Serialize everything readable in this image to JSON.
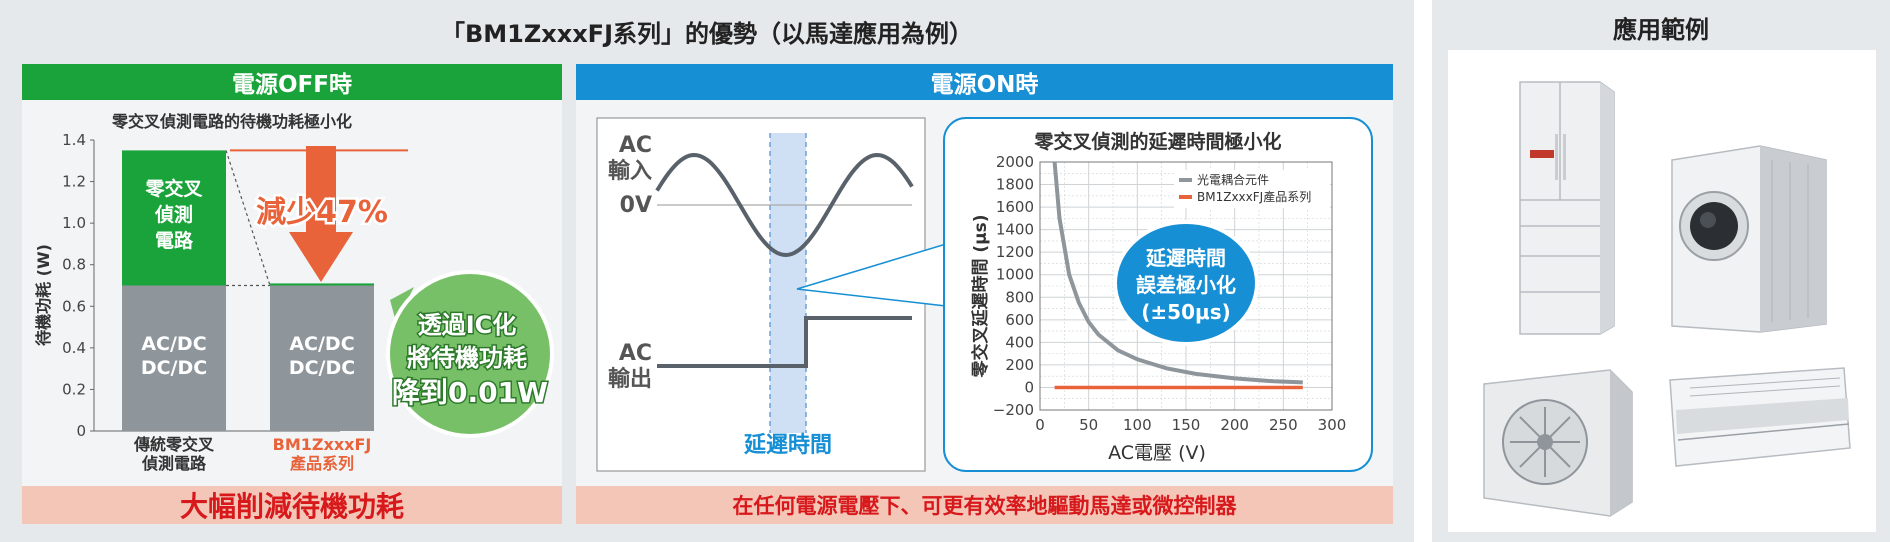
{
  "title": "「BM1ZxxxFJ系列」的優勢（以馬達應用為例）",
  "side_title": "應用範例",
  "off": {
    "header": "電源OFF時",
    "chart_title": "零交叉偵測電路的待機功耗極小化",
    "ylabel": "待機功耗 (W)",
    "yticks": [
      "0",
      "0.2",
      "0.4",
      "0.6",
      "0.8",
      "1.0",
      "1.2",
      "1.4"
    ],
    "bar1_top": [
      "零交叉",
      "偵測",
      "電路"
    ],
    "bar1_bottom": [
      "AC/DC",
      "DC/DC"
    ],
    "bar2_bottom": [
      "AC/DC",
      "DC/DC"
    ],
    "cat1": [
      "傳統零交叉",
      "偵測電路"
    ],
    "cat2": [
      "BM1ZxxxFJ",
      "產品系列"
    ],
    "reduction": "減少47%",
    "bubble": [
      "透過IC化",
      "將待機功耗",
      "降到0.01W"
    ],
    "footer": "大幅削減待機功耗"
  },
  "on": {
    "header": "電源ON時",
    "ac_in": [
      "AC",
      "輸入"
    ],
    "zero_v": "0V",
    "ac_out": [
      "AC",
      "輸出"
    ],
    "delay": "延遲時間",
    "footer": "在任何電源電壓下、可更有效率地驅動馬達或微控制器"
  },
  "delay_chart": {
    "title": "零交叉偵測的延遲時間極小化",
    "ylabel": "零交叉延遲時間 (μs)",
    "xlabel": "AC電壓 (V)",
    "yticks": [
      "−200",
      "0",
      "200",
      "400",
      "600",
      "800",
      "1000",
      "1200",
      "1400",
      "1600",
      "1800",
      "2000"
    ],
    "xticks": [
      "0",
      "50",
      "100",
      "150",
      "200",
      "250",
      "300"
    ],
    "legend": [
      "光電耦合元件",
      "BM1ZxxxFJ產品系列"
    ],
    "bubble": [
      "延遲時間",
      "誤差極小化",
      "(±50μs)"
    ]
  },
  "colors": {
    "green": "#1aa33a",
    "blue": "#168fd5",
    "gray": "#8e969c",
    "orange": "#e8623a",
    "red": "#d8191c",
    "bubble_green": "#78c068"
  },
  "chart_data": [
    {
      "type": "bar",
      "title": "零交叉偵測電路的待機功耗極小化",
      "ylabel": "待機功耗 (W)",
      "categories": [
        "傳統零交叉偵測電路",
        "BM1ZxxxFJ產品系列"
      ],
      "series": [
        {
          "name": "AC/DC DC/DC",
          "values": [
            0.7,
            0.7
          ]
        },
        {
          "name": "零交叉偵測電路",
          "values": [
            0.65,
            0.01
          ]
        }
      ],
      "ylim": [
        0,
        1.4
      ],
      "annotations": [
        "減少47%",
        "透過IC化將待機功耗降到0.01W"
      ]
    },
    {
      "type": "line",
      "title": "零交叉偵測的延遲時間極小化",
      "xlabel": "AC電壓 (V)",
      "ylabel": "零交叉延遲時間 (μs)",
      "xlim": [
        0,
        300
      ],
      "ylim": [
        -200,
        2000
      ],
      "grid": true,
      "legend_position": "top-right",
      "series": [
        {
          "name": "光電耦合元件",
          "x": [
            15,
            20,
            30,
            40,
            50,
            60,
            80,
            100,
            130,
            160,
            200,
            240,
            270
          ],
          "y": [
            2000,
            1500,
            1000,
            750,
            580,
            470,
            330,
            250,
            170,
            120,
            80,
            55,
            45
          ]
        },
        {
          "name": "BM1ZxxxFJ產品系列",
          "x": [
            15,
            270
          ],
          "y": [
            0,
            0
          ]
        }
      ]
    }
  ]
}
